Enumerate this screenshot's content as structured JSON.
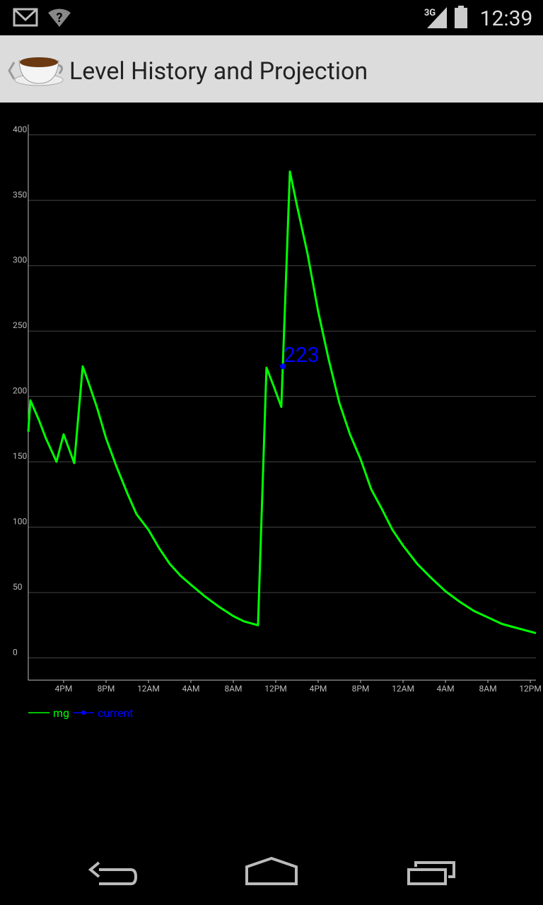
{
  "status_bar": {
    "network": "3G",
    "time": "12:39"
  },
  "app_bar": {
    "title": "Level History and Projection"
  },
  "chart_data": {
    "type": "line",
    "xlim": [
      12.67,
      60.53
    ],
    "xticks": [
      {
        "value": 16,
        "label": "4PM"
      },
      {
        "value": 20,
        "label": "8PM"
      },
      {
        "value": 24,
        "label": "12AM"
      },
      {
        "value": 28,
        "label": "4AM"
      },
      {
        "value": 32,
        "label": "8AM"
      },
      {
        "value": 36,
        "label": "12PM"
      },
      {
        "value": 40,
        "label": "4PM"
      },
      {
        "value": 44,
        "label": "8PM"
      },
      {
        "value": 48,
        "label": "12AM"
      },
      {
        "value": 52,
        "label": "4AM"
      },
      {
        "value": 56,
        "label": "8AM"
      },
      {
        "value": 60,
        "label": "12PM"
      }
    ],
    "ylim": [
      -17,
      408
    ],
    "yticks": [
      0,
      50,
      100,
      150,
      200,
      250,
      300,
      350,
      400
    ],
    "grid": true,
    "series": [
      {
        "name": "mg",
        "color": "#00ff00",
        "x": [
          12.67,
          12.87,
          13.67,
          14.33,
          15.0,
          15.33,
          16.0,
          17.0,
          17.8,
          18.33,
          19.13,
          20.0,
          21.0,
          22.0,
          22.87,
          24.0,
          25.0,
          26.0,
          27.0,
          28.0,
          29.33,
          30.67,
          32.0,
          33.0,
          34.33,
          35.13,
          35.8,
          36.53,
          37.33,
          38.0,
          39.0,
          40.0,
          41.0,
          42.0,
          43.0,
          44.0,
          45.0,
          46.0,
          47.0,
          48.0,
          49.33,
          50.67,
          52.0,
          53.33,
          54.67,
          56.0,
          57.33,
          58.67,
          60.53
        ],
        "values": [
          173,
          197,
          182,
          168,
          156,
          150,
          171,
          149,
          223,
          211,
          192,
          168,
          146,
          126,
          110,
          98,
          84,
          72,
          63,
          56,
          47,
          39,
          32,
          28,
          25,
          222,
          208,
          192,
          372,
          346,
          309,
          265,
          228,
          195,
          171,
          152,
          129,
          114,
          98,
          86,
          72,
          61,
          51,
          43,
          36,
          31,
          26,
          23,
          19
        ]
      },
      {
        "name": "current",
        "color": "#0000ff",
        "x": [
          36.67
        ],
        "values": [
          223
        ]
      }
    ]
  }
}
